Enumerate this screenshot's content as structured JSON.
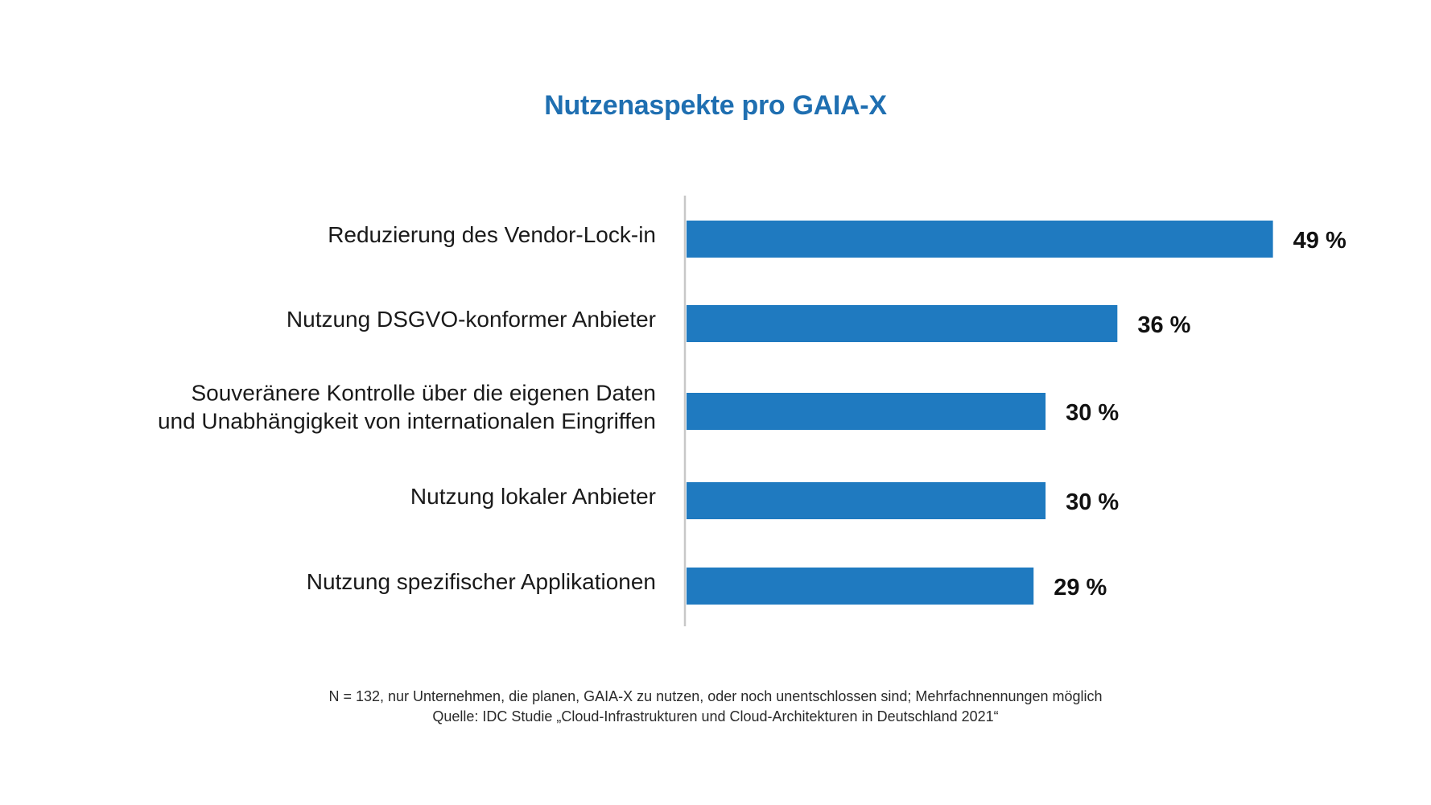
{
  "colors": {
    "title": "#1f6fb1",
    "bar": "#1f7ac0",
    "axis": "#c8c8c8"
  },
  "chart_data": {
    "type": "bar",
    "orientation": "horizontal",
    "title": "Nutzenaspekte pro GAIA-X",
    "categories": [
      [
        "Reduzierung des Vendor-Lock-in"
      ],
      [
        "Nutzung DSGVO-konformer Anbieter"
      ],
      [
        "Souveränere Kontrolle über die eigenen Daten",
        "und Unabhängigkeit von internationalen Eingriffen"
      ],
      [
        "Nutzung lokaler Anbieter"
      ],
      [
        "Nutzung spezifischer Applikationen"
      ]
    ],
    "values": [
      49,
      36,
      30,
      30,
      29
    ],
    "value_labels": [
      "49 %",
      "36 %",
      "30 %",
      "30 %",
      "29 %"
    ],
    "unit": "%",
    "grid": false,
    "legend": "none"
  },
  "footnote": {
    "line1": "N = 132, nur Unternehmen, die planen, GAIA-X zu nutzen, oder noch unentschlossen sind; Mehrfachnennungen möglich",
    "line2": "Quelle: IDC Studie „Cloud-Infrastrukturen und Cloud-Architekturen in Deutschland 2021“"
  }
}
